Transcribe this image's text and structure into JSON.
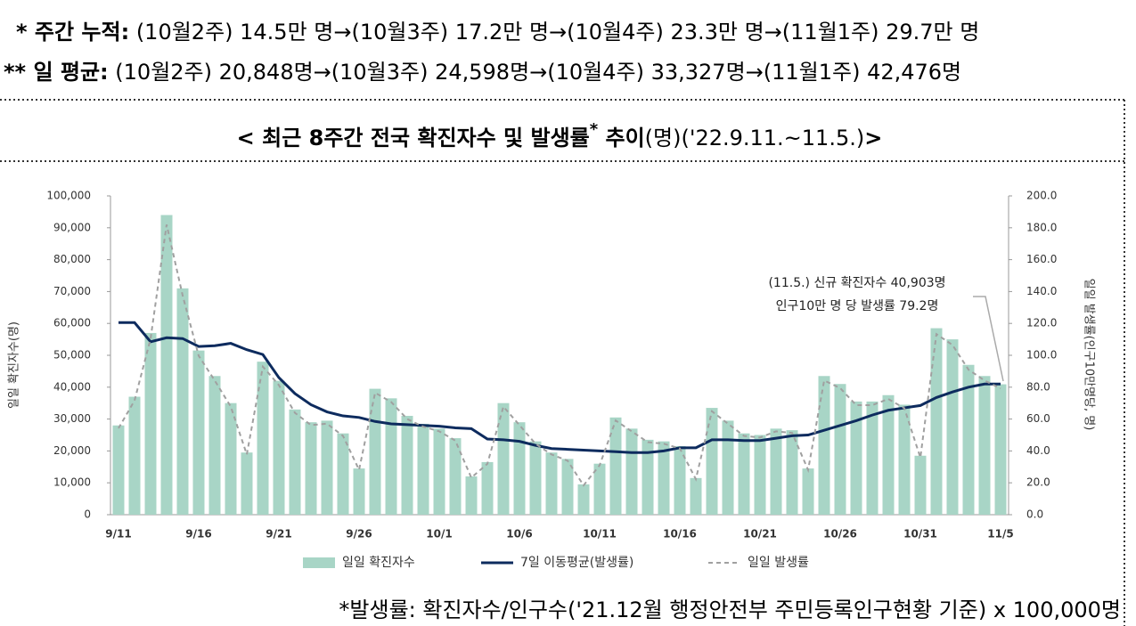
{
  "header": {
    "line1_label": "* 주간 누적:",
    "line1_text": " (10월2주) 14.5만 명→(10월3주) 17.2만 명→(10월4주) 23.3만 명→(11월1주) 29.7만 명",
    "line2_label": "** 일 평균:",
    "line2_text": " (10월2주) 20,848명→(10월3주) 24,598명→(10월4주) 33,327명→(11월1주) 42,476명"
  },
  "chart_data": {
    "type": "bar",
    "title_parts": [
      "< 최근 8주간 전국 확진자수 및 발생률",
      "*",
      " 추이",
      "(명)('22.9.11.~11.5.)",
      ">"
    ],
    "ylabel": "일일 확진자수(명)",
    "y2label": "일일 발생률(인구10만명당, 명)",
    "annotation": [
      "(11.5.) 신규 확진자수 40,903명",
      "인구10만 명 당 발생률 79.2명"
    ],
    "footnote": "*발생률: 확진자수/인구수('21.12월 행정안전부 주민등록인구현황 기준) x 100,000명",
    "categories": [
      "9/11",
      null,
      null,
      null,
      null,
      "9/16",
      null,
      null,
      null,
      null,
      "9/21",
      null,
      null,
      null,
      null,
      "9/26",
      null,
      null,
      null,
      null,
      "10/1",
      null,
      null,
      null,
      null,
      "10/6",
      null,
      null,
      null,
      null,
      "10/11",
      null,
      null,
      null,
      null,
      "10/16",
      null,
      null,
      null,
      null,
      "10/21",
      null,
      null,
      null,
      null,
      "10/26",
      null,
      null,
      null,
      null,
      "10/31",
      null,
      null,
      null,
      null,
      "11/5"
    ],
    "ylim": [
      0,
      100000
    ],
    "yticks": [
      0,
      {
        "value": 10000,
        "label": "10,000"
      },
      {
        "value": 20000,
        "label": "20,000"
      },
      {
        "value": 30000,
        "label": "30,000"
      },
      {
        "value": 40000,
        "label": "40,000"
      },
      {
        "value": 50000,
        "label": "50,000"
      },
      {
        "value": 60000,
        "label": "60,000"
      },
      {
        "value": 70000,
        "label": "70,000"
      },
      {
        "value": 80000,
        "label": "80,000"
      },
      {
        "value": 90000,
        "label": "90,000"
      },
      {
        "value": 100000,
        "label": "100,000"
      }
    ],
    "y2lim": [
      0,
      200
    ],
    "y2ticks": [
      {
        "value": 0,
        "label": "0.0"
      },
      {
        "value": 20,
        "label": "20.0"
      },
      {
        "value": 40,
        "label": "40.0"
      },
      {
        "value": 60,
        "label": "60.0"
      },
      {
        "value": 80,
        "label": "80.0"
      },
      {
        "value": 100,
        "label": "100.0"
      },
      {
        "value": 120,
        "label": "120.0"
      },
      {
        "value": 140,
        "label": "140.0"
      },
      {
        "value": 160,
        "label": "160.0"
      },
      {
        "value": 180,
        "label": "180.0"
      },
      {
        "value": 200,
        "label": "200.0"
      }
    ],
    "series": [
      {
        "name": "일일 확진자수",
        "type": "bar",
        "color": "#a8d5c6",
        "values": [
          28000,
          37000,
          57000,
          94000,
          71000,
          51500,
          43500,
          35000,
          19500,
          48000,
          42000,
          33000,
          29000,
          29500,
          25500,
          14500,
          39500,
          36500,
          31000,
          28500,
          27000,
          24000,
          12000,
          16500,
          35000,
          29000,
          23000,
          19500,
          17500,
          9500,
          16000,
          30500,
          27000,
          23500,
          23000,
          21500,
          11500,
          33500,
          29500,
          25500,
          25000,
          27000,
          26500,
          14500,
          43500,
          41000,
          35500,
          35500,
          37500,
          34500,
          18500,
          58500,
          55000,
          47000,
          43500,
          40903
        ]
      },
      {
        "name": "7일 이동평균(발생률)",
        "type": "line",
        "axis": "y2",
        "color": "#0d2b5e",
        "dashed": false,
        "values": [
          120.5,
          120.5,
          108.5,
          111,
          110.5,
          105.5,
          106,
          107.5,
          103.5,
          100.5,
          86,
          76,
          69,
          64.5,
          62,
          61,
          58.5,
          57,
          56.5,
          56,
          55.5,
          54.5,
          54,
          47.5,
          47,
          46,
          43.5,
          41.5,
          41,
          40.5,
          40,
          39.5,
          39,
          39,
          40,
          42,
          42,
          47,
          47,
          46.5,
          46.5,
          48,
          49.5,
          50,
          53,
          56,
          59,
          62.5,
          65.5,
          67,
          68.5,
          73.5,
          77,
          80,
          82,
          82
        ]
      },
      {
        "name": "일일 발생률",
        "type": "line",
        "axis": "y2",
        "color": "#a0a0a0",
        "dashed": true,
        "values": [
          54.2,
          71.6,
          110.4,
          182.0,
          137.5,
          99.7,
          84.2,
          67.8,
          37.8,
          92.9,
          81.3,
          63.9,
          56.2,
          57.1,
          49.4,
          28.1,
          76.5,
          70.7,
          60.0,
          55.2,
          52.3,
          46.5,
          23.2,
          31.9,
          67.8,
          56.2,
          44.5,
          37.8,
          33.9,
          18.4,
          31.0,
          59.1,
          52.3,
          45.5,
          44.5,
          41.6,
          22.3,
          64.9,
          57.1,
          49.4,
          48.4,
          52.3,
          51.3,
          28.1,
          84.2,
          79.4,
          68.7,
          68.7,
          72.6,
          66.8,
          35.8,
          113.3,
          106.5,
          91.0,
          84.2,
          79.2
        ]
      }
    ]
  }
}
